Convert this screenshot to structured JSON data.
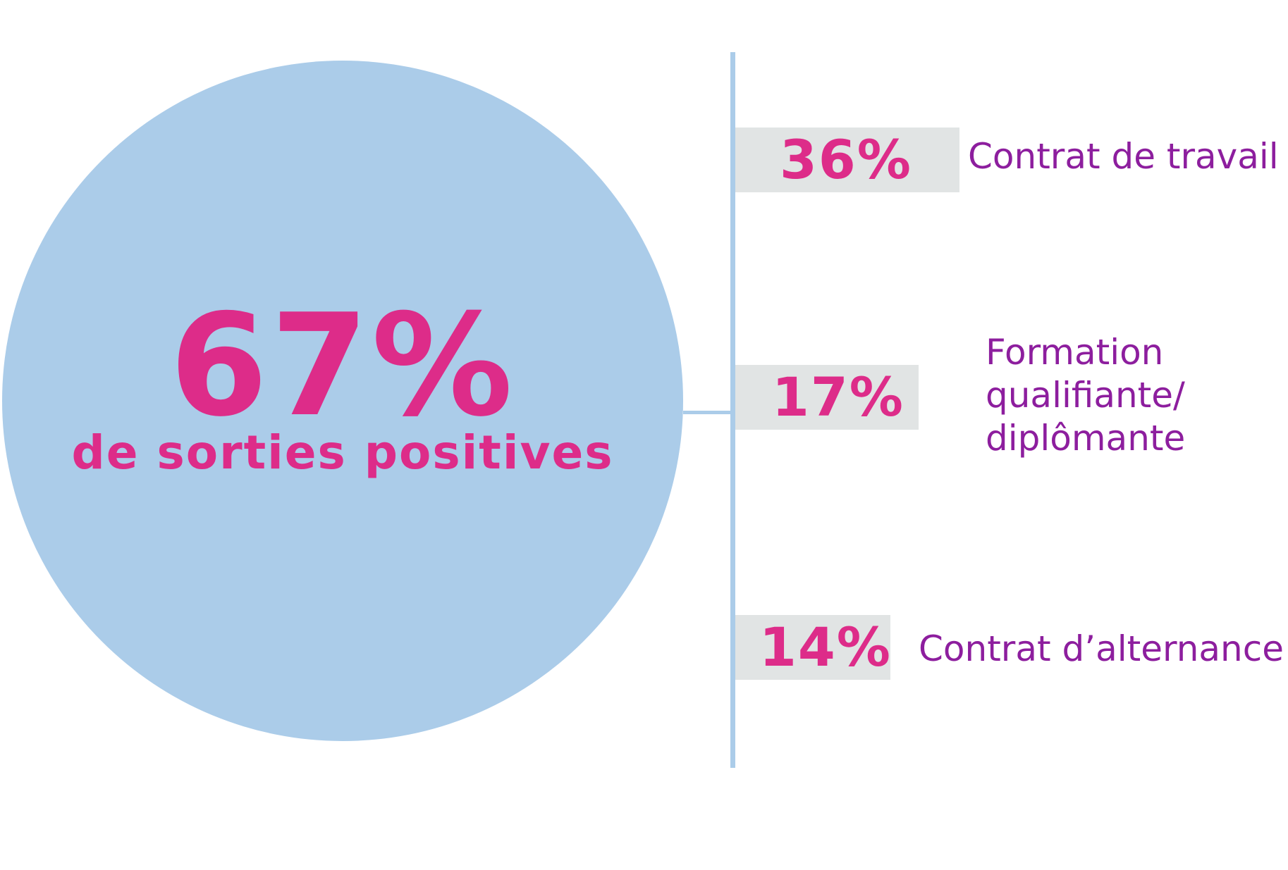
{
  "colors": {
    "circle": "#abcce9",
    "accent_pink": "#dd2c89",
    "label_purple": "#8d1e9e",
    "badge_gray": "#e1e4e4",
    "line_blue": "#abcce9"
  },
  "summary": {
    "value": "67%",
    "caption": "de sorties positives"
  },
  "breakdown": [
    {
      "value": "36%",
      "label": "Contrat de travail"
    },
    {
      "value": "17%",
      "label_lines": [
        "Formation",
        "qualifiante/",
        "diplômante"
      ]
    },
    {
      "value": "14%",
      "label": "Contrat d’alternance"
    }
  ]
}
